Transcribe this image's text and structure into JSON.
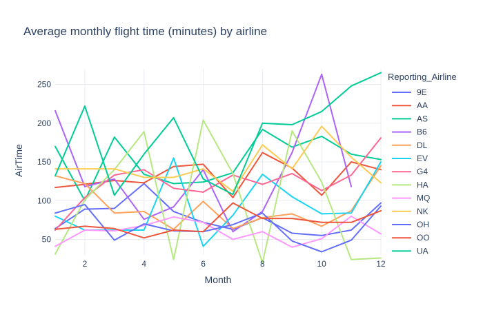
{
  "chart_data": {
    "type": "line",
    "title": "Average monthly flight time (minutes) by airline",
    "xlabel": "Month",
    "ylabel": "AirTime",
    "legend_title": "Reporting_Airline",
    "legend_position": "right",
    "grid": true,
    "xlim": [
      1,
      12
    ],
    "ylim": [
      30,
      270
    ],
    "x_ticks": [
      2,
      4,
      6,
      8,
      10,
      12
    ],
    "y_ticks": [
      50,
      100,
      150,
      200,
      250
    ],
    "x": [
      1,
      2,
      3,
      4,
      5,
      6,
      7,
      8,
      9,
      10,
      11,
      12
    ],
    "series": [
      {
        "name": "9E",
        "color": "#636efa",
        "values": [
          64,
          89,
          90,
          122,
          86,
          72,
          63,
          78,
          58,
          55,
          62,
          97
        ]
      },
      {
        "name": "AA",
        "color": "#EF553B",
        "values": [
          117,
          121,
          126,
          123,
          144,
          147,
          104,
          162,
          142,
          107,
          150,
          140
        ]
      },
      {
        "name": "AS",
        "color": "#00cc96",
        "values": [
          170,
          100,
          182,
          134,
          122,
          124,
          136,
          192,
          169,
          183,
          160,
          153
        ]
      },
      {
        "name": "B6",
        "color": "#ab63fa",
        "values": [
          216,
          118,
          128,
          76,
          92,
          140,
          60,
          86,
          162,
          263,
          118,
          null
        ]
      },
      {
        "name": "DL",
        "color": "#FFA15A",
        "values": [
          132,
          122,
          84,
          86,
          63,
          99,
          64,
          78,
          83,
          67,
          87,
          145
        ]
      },
      {
        "name": "EV",
        "color": "#19d3f3",
        "values": [
          80,
          62,
          62,
          62,
          155,
          41,
          81,
          134,
          105,
          83,
          84,
          150
        ]
      },
      {
        "name": "G4",
        "color": "#FF6692",
        "values": [
          62,
          104,
          133,
          140,
          116,
          111,
          133,
          121,
          135,
          113,
          133,
          181
        ]
      },
      {
        "name": "HA",
        "color": "#B6E880",
        "values": [
          31,
          101,
          140,
          189,
          24,
          204,
          135,
          20,
          190,
          124,
          24,
          26
        ]
      },
      {
        "name": "MQ",
        "color": "#FF97FF",
        "values": [
          41,
          62,
          61,
          68,
          79,
          72,
          50,
          60,
          40,
          51,
          80,
          57
        ]
      },
      {
        "name": "NK",
        "color": "#FECB52",
        "values": [
          141,
          141,
          141,
          130,
          130,
          141,
          112,
          172,
          141,
          196,
          156,
          123
        ]
      },
      {
        "name": "OH",
        "color": "#636efa",
        "values": [
          84,
          95,
          49,
          70,
          61,
          60,
          69,
          84,
          48,
          34,
          49,
          93
        ]
      },
      {
        "name": "OO",
        "color": "#EF553B",
        "values": [
          63,
          67,
          64,
          52,
          62,
          60,
          97,
          77,
          77,
          72,
          72,
          87
        ]
      },
      {
        "name": "UA",
        "color": "#00cc96",
        "values": [
          132,
          222,
          107,
          160,
          207,
          128,
          108,
          200,
          198,
          215,
          248,
          265
        ]
      }
    ]
  }
}
